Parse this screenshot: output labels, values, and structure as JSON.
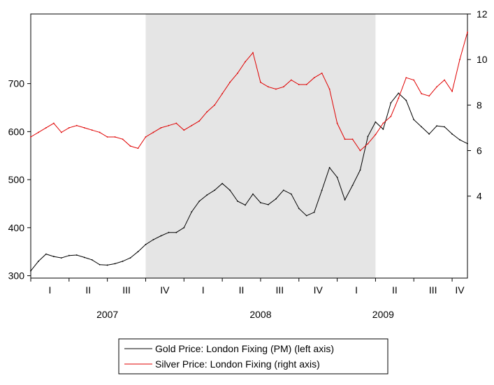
{
  "chart_data": {
    "type": "line",
    "title": "",
    "shaded_region": {
      "start": 2007.75,
      "end": 2009.25
    },
    "x_range": [
      2007.0,
      2009.85
    ],
    "left_axis": {
      "min": 295,
      "max": 845,
      "ticks": [
        300,
        400,
        500,
        600,
        700
      ],
      "tick_labels": [
        "300",
        "400",
        "500",
        "600",
        "700"
      ]
    },
    "right_axis": {
      "min": 0.4,
      "max": 12.0,
      "ticks": [
        4,
        6,
        8,
        10,
        12
      ],
      "tick_labels": [
        "4",
        "6",
        "8",
        "10",
        "12"
      ]
    },
    "quarter_labels": [
      {
        "x": 2007.125,
        "label": "I"
      },
      {
        "x": 2007.375,
        "label": "II"
      },
      {
        "x": 2007.625,
        "label": "III"
      },
      {
        "x": 2007.875,
        "label": "IV"
      },
      {
        "x": 2008.125,
        "label": "I"
      },
      {
        "x": 2008.375,
        "label": "II"
      },
      {
        "x": 2008.625,
        "label": "III"
      },
      {
        "x": 2008.875,
        "label": "IV"
      },
      {
        "x": 2009.125,
        "label": "I"
      },
      {
        "x": 2009.375,
        "label": "II"
      },
      {
        "x": 2009.625,
        "label": "III"
      },
      {
        "x": 2009.8,
        "label": "IV"
      }
    ],
    "year_labels": [
      {
        "x": 2007.5,
        "label": "2007"
      },
      {
        "x": 2008.5,
        "label": "2008"
      },
      {
        "x": 2009.3,
        "label": "2009"
      }
    ],
    "series": [
      {
        "name": "Gold Price: London Fixing (PM) (left axis)",
        "axis": "left",
        "color": "#000000",
        "x": [
          2007.0,
          2007.05,
          2007.1,
          2007.15,
          2007.2,
          2007.25,
          2007.3,
          2007.35,
          2007.4,
          2007.45,
          2007.5,
          2007.55,
          2007.6,
          2007.65,
          2007.7,
          2007.75,
          2007.8,
          2007.85,
          2007.9,
          2007.95,
          2008.0,
          2008.05,
          2008.1,
          2008.15,
          2008.2,
          2008.25,
          2008.3,
          2008.35,
          2008.4,
          2008.45,
          2008.5,
          2008.55,
          2008.6,
          2008.65,
          2008.7,
          2008.75,
          2008.8,
          2008.85,
          2008.9,
          2008.95,
          2009.0,
          2009.05,
          2009.1,
          2009.15,
          2009.2,
          2009.25,
          2009.3,
          2009.35,
          2009.4,
          2009.45,
          2009.5,
          2009.55,
          2009.6,
          2009.65,
          2009.7,
          2009.75,
          2009.8,
          2009.85
        ],
        "values": [
          310,
          330,
          345,
          340,
          337,
          342,
          343,
          338,
          333,
          323,
          322,
          325,
          330,
          337,
          350,
          365,
          375,
          383,
          390,
          390,
          400,
          433,
          455,
          468,
          478,
          492,
          478,
          455,
          447,
          470,
          452,
          448,
          460,
          478,
          470,
          440,
          425,
          432,
          478,
          525,
          505,
          458,
          488,
          520,
          590,
          620,
          605,
          660,
          680,
          665,
          625,
          610,
          595,
          612,
          610,
          595,
          583,
          575
        ]
      },
      {
        "name": "Silver Price: London Fixing (right axis)",
        "axis": "right",
        "color": "#e00000",
        "x": [
          2007.0,
          2007.05,
          2007.1,
          2007.15,
          2007.2,
          2007.25,
          2007.3,
          2007.35,
          2007.4,
          2007.45,
          2007.5,
          2007.55,
          2007.6,
          2007.65,
          2007.7,
          2007.75,
          2007.8,
          2007.85,
          2007.9,
          2007.95,
          2008.0,
          2008.05,
          2008.1,
          2008.15,
          2008.2,
          2008.25,
          2008.3,
          2008.35,
          2008.4,
          2008.45,
          2008.5,
          2008.55,
          2008.6,
          2008.65,
          2008.7,
          2008.75,
          2008.8,
          2008.85,
          2008.9,
          2008.95,
          2009.0,
          2009.05,
          2009.1,
          2009.15,
          2009.2,
          2009.25,
          2009.3,
          2009.35,
          2009.4,
          2009.45,
          2009.5,
          2009.55,
          2009.6,
          2009.65,
          2009.7,
          2009.75,
          2009.8,
          2009.85
        ],
        "values": [
          6.6,
          6.8,
          7.0,
          7.2,
          6.8,
          7.0,
          7.1,
          7.0,
          6.9,
          6.8,
          6.6,
          6.6,
          6.5,
          6.2,
          6.1,
          6.6,
          6.8,
          7.0,
          7.1,
          7.2,
          6.9,
          7.1,
          7.3,
          7.7,
          8.0,
          8.5,
          9.0,
          9.4,
          9.9,
          10.3,
          9.0,
          8.8,
          8.7,
          8.8,
          9.1,
          8.9,
          8.9,
          9.2,
          9.4,
          8.7,
          7.2,
          6.5,
          6.5,
          6.0,
          6.3,
          6.7,
          7.2,
          7.5,
          8.3,
          9.2,
          9.1,
          8.5,
          8.4,
          8.8,
          9.1,
          8.6,
          10.0,
          11.2
        ]
      }
    ]
  },
  "legend": {
    "items": [
      {
        "label": "Gold Price: London Fixing (PM) (left axis)",
        "color": "#000000"
      },
      {
        "label": "Silver Price: London Fixing (right axis)",
        "color": "#e00000"
      }
    ]
  }
}
